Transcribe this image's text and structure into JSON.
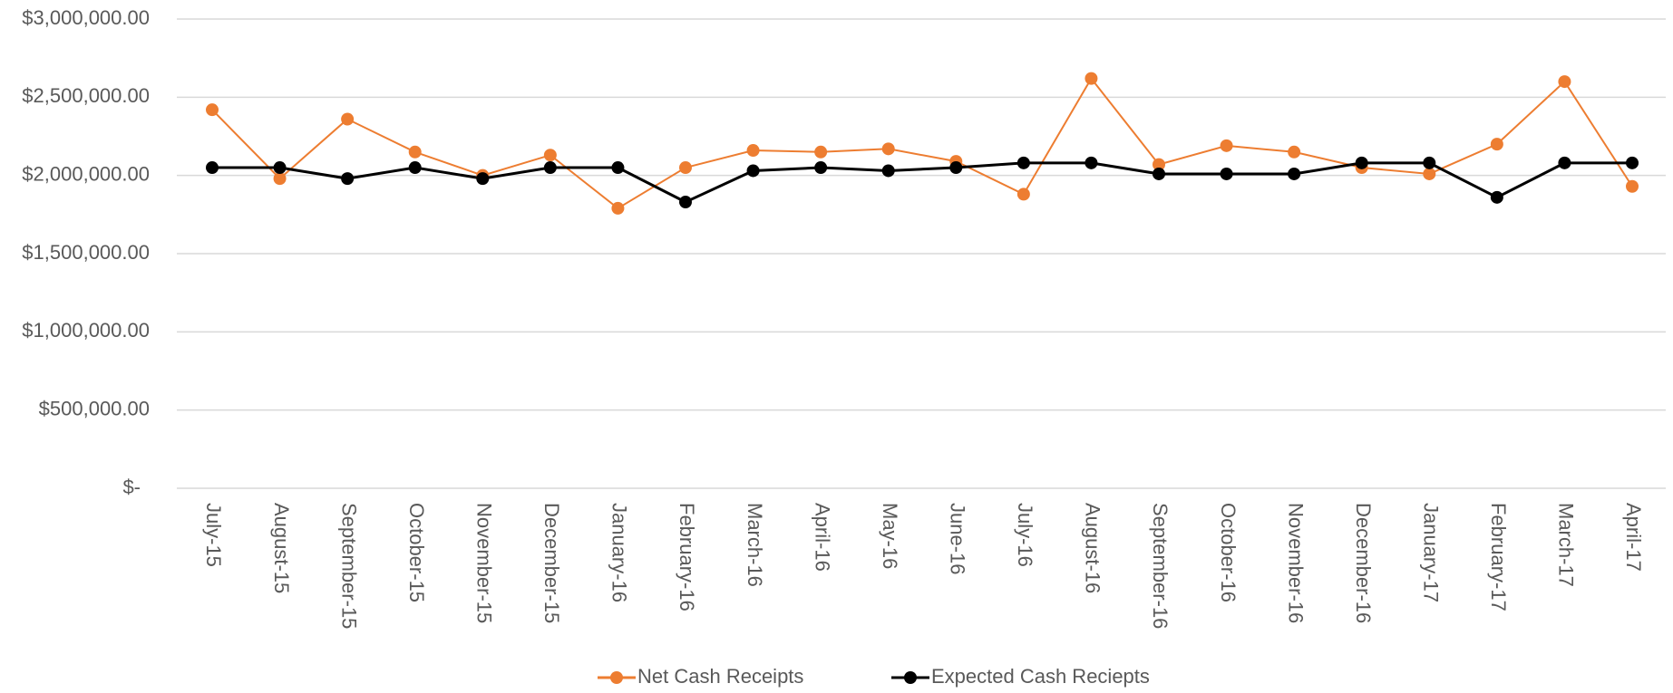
{
  "chart_data": {
    "type": "line",
    "categories": [
      "July-15",
      "August-15",
      "September-15",
      "October-15",
      "November-15",
      "December-15",
      "January-16",
      "February-16",
      "March-16",
      "April-16",
      "May-16",
      "June-16",
      "July-16",
      "August-16",
      "September-16",
      "October-16",
      "November-16",
      "December-16",
      "January-17",
      "February-17",
      "March-17",
      "April-17"
    ],
    "series": [
      {
        "name": "Net Cash Receipts",
        "color": "#ed7d31",
        "values": [
          2420000,
          1980000,
          2360000,
          2150000,
          2000000,
          2130000,
          1790000,
          2050000,
          2160000,
          2150000,
          2170000,
          2090000,
          1880000,
          2620000,
          2070000,
          2190000,
          2150000,
          2050000,
          2010000,
          2200000,
          2600000,
          1930000
        ]
      },
      {
        "name": "Expected Cash Reciepts",
        "color": "#000000",
        "values": [
          2050000,
          2050000,
          1980000,
          2050000,
          1980000,
          2050000,
          2050000,
          1830000,
          2030000,
          2050000,
          2030000,
          2050000,
          2080000,
          2080000,
          2010000,
          2010000,
          2010000,
          2080000,
          2080000,
          1860000,
          2080000,
          2080000
        ]
      }
    ],
    "ylim": [
      0,
      3000000
    ],
    "yticks": [
      {
        "value": 0,
        "label": "$-"
      },
      {
        "value": 500000,
        "label": "$500,000.00"
      },
      {
        "value": 1000000,
        "label": "$1,000,000.00"
      },
      {
        "value": 1500000,
        "label": "$1,500,000.00"
      },
      {
        "value": 2000000,
        "label": "$2,000,000.00"
      },
      {
        "value": 2500000,
        "label": "$2,500,000.00"
      },
      {
        "value": 3000000,
        "label": "$3,000,000.00"
      }
    ],
    "grid": true,
    "legend": "bottom"
  }
}
